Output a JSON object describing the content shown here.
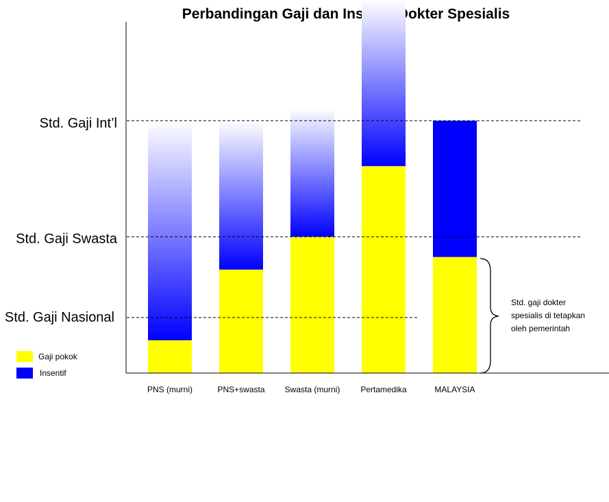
{
  "chart_data": {
    "type": "bar",
    "title": "Perbandingan Gaji dan Insentif Dokter Spesialis",
    "xlabel": "",
    "ylabel": "",
    "categories": [
      "PNS (murni)",
      "PNS+swasta",
      "Swasta (murni)",
      "Pertamedika",
      "MALAYSIA"
    ],
    "series": [
      {
        "name": "Gaji pokok",
        "color": "#ffff00",
        "values": [
          0.13,
          0.41,
          0.54,
          0.82,
          0.46
        ]
      },
      {
        "name": "Insentif",
        "color": "#0000ff",
        "values": [
          0.87,
          0.59,
          0.51,
          0.66,
          0.54
        ]
      }
    ],
    "incentive_faded_top": [
      true,
      true,
      true,
      true,
      false
    ],
    "reference_lines": [
      {
        "label": "Std. Gaji Nasional",
        "value": 0.22
      },
      {
        "label": "Std. Gaji Swasta",
        "value": 0.54
      },
      {
        "label": "Std. Gaji Int’l",
        "value": 1.0
      }
    ],
    "annotation": {
      "lines": [
        "Std. gaji dokter",
        "spesialis di tetapkan",
        "oleh pemerintah"
      ],
      "category": "MALAYSIA"
    },
    "legend_position": "bottom-left",
    "grid": false,
    "ylim": [
      0,
      1.35
    ]
  }
}
